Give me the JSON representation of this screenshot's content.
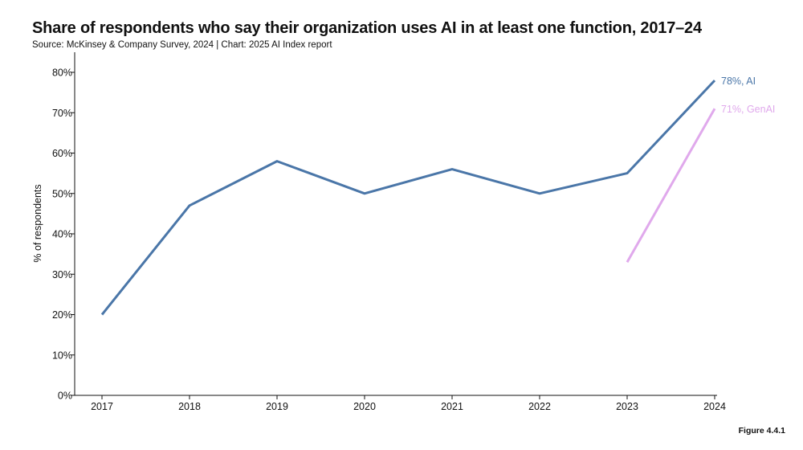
{
  "header": {
    "title": "Share of respondents who say their organization uses AI in at least one function, 2017–24",
    "subtitle": "Source: McKinsey & Company Survey, 2024 | Chart: 2025 AI Index report"
  },
  "footer": {
    "figure_label": "Figure 4.4.1"
  },
  "chart_data": {
    "type": "line",
    "title": "Share of respondents who say their organization uses AI in at least one function, 2017–24",
    "xlabel": "",
    "ylabel": "% of respondents",
    "x": [
      "2017",
      "2018",
      "2019",
      "2020",
      "2021",
      "2022",
      "2023",
      "2024"
    ],
    "ylim": [
      0,
      80
    ],
    "yticks": [
      "0%",
      "10%",
      "20%",
      "30%",
      "40%",
      "50%",
      "60%",
      "70%",
      "80%"
    ],
    "ytick_values": [
      0,
      10,
      20,
      30,
      40,
      50,
      60,
      70,
      80
    ],
    "grid": false,
    "series": [
      {
        "name": "AI",
        "color": "#4a76a8",
        "values": [
          20,
          47,
          58,
          50,
          56,
          50,
          55,
          78
        ],
        "end_label": "78%, AI"
      },
      {
        "name": "GenAI",
        "color": "#e0a9ec",
        "values": [
          null,
          null,
          null,
          null,
          null,
          null,
          33,
          71
        ],
        "end_label": "71%, GenAI"
      }
    ]
  }
}
